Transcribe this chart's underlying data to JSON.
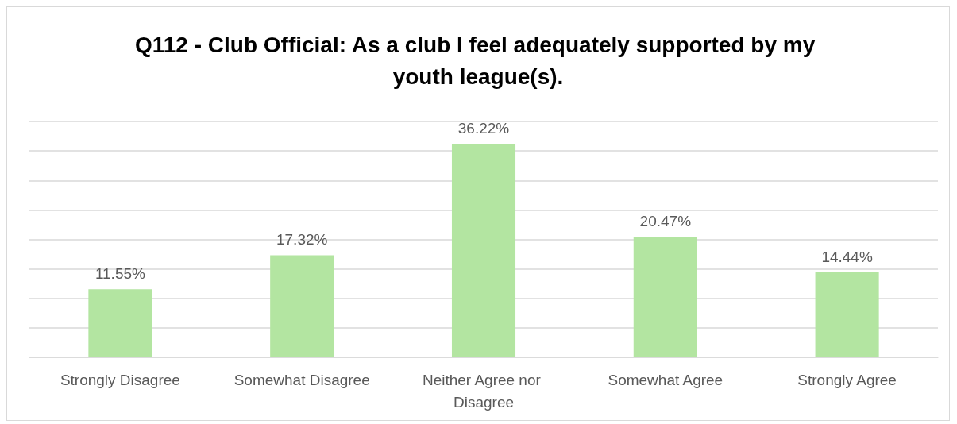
{
  "chart_data": {
    "type": "bar",
    "title": "Q112 - Club Official: As a club I feel adequately supported by my youth league(s).",
    "categories": [
      "Strongly Disagree",
      "Somewhat Disagree",
      "Neither Agree nor Disagree",
      "Somewhat Agree",
      "Strongly Agree"
    ],
    "values": [
      11.55,
      17.32,
      36.22,
      20.47,
      14.44
    ],
    "value_labels": [
      "11.55%",
      "17.32%",
      "36.22%",
      "20.47%",
      "14.44%"
    ],
    "color": "#b3e5a1",
    "ylim": [
      0,
      40
    ],
    "yticks": [
      {
        "value": 0,
        "label": null
      },
      {
        "value": 5,
        "label": null
      },
      {
        "value": 10,
        "label": null
      },
      {
        "value": 15,
        "label": null
      },
      {
        "value": 20,
        "label": null
      },
      {
        "value": 25,
        "label": null
      },
      {
        "value": 30,
        "label": null
      },
      {
        "value": 35,
        "label": null
      },
      {
        "value": 40,
        "label": null
      }
    ],
    "grid": "y",
    "tick_labels": "x"
  }
}
